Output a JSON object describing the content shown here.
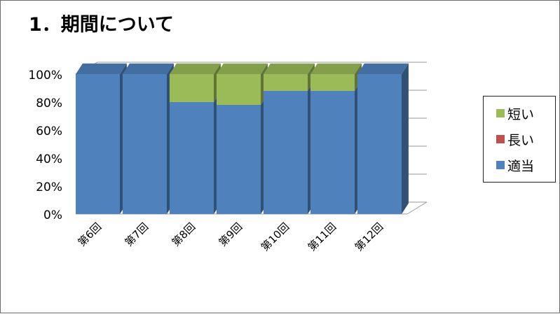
{
  "title": "1．期間について",
  "chart_data": {
    "type": "bar",
    "stacked": true,
    "percent": true,
    "three_d": true,
    "categories": [
      "第6回",
      "第7回",
      "第8回",
      "第9回",
      "第10回",
      "第11回",
      "第12回"
    ],
    "series": [
      {
        "name": "適当",
        "values": [
          100,
          100,
          80,
          78,
          88,
          88,
          100
        ],
        "color": "#4f81bd"
      },
      {
        "name": "長い",
        "values": [
          0,
          0,
          0,
          0,
          0,
          0,
          0
        ],
        "color": "#c0504d"
      },
      {
        "name": "短い",
        "values": [
          0,
          0,
          20,
          22,
          12,
          12,
          0
        ],
        "color": "#9bbb59"
      }
    ],
    "ylim": [
      0,
      100
    ],
    "yticks": [
      "0%",
      "20%",
      "40%",
      "60%",
      "80%",
      "100%"
    ],
    "grid": true,
    "legend_position": "right",
    "legend_order": [
      "短い",
      "長い",
      "適当"
    ]
  }
}
